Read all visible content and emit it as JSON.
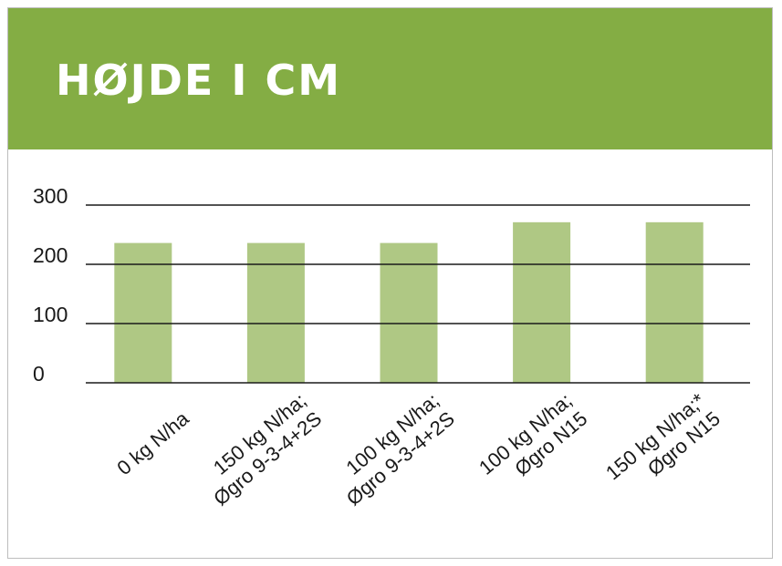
{
  "header": {
    "title": "HØJDE I CM",
    "color": "#84ad44"
  },
  "chart_data": {
    "type": "bar",
    "title": "HØJDE I CM",
    "xlabel": "",
    "ylabel": "",
    "ylim": [
      0,
      300
    ],
    "yticks": [
      0,
      100,
      200,
      300
    ],
    "grid": true,
    "legend": "none",
    "bar_color": "#afc884",
    "categories": [
      [
        "0  kg N/ha"
      ],
      [
        "150 kg N/ha;",
        "Øgro 9-3-4+2S"
      ],
      [
        "100 kg N/ha;",
        "Øgro 9-3-4+2S"
      ],
      [
        "100 kg N/ha;",
        "Øgro N15"
      ],
      [
        "150 kg N/ha;*",
        "Øgro N15"
      ]
    ],
    "values": [
      236,
      236,
      236,
      271,
      271
    ]
  }
}
